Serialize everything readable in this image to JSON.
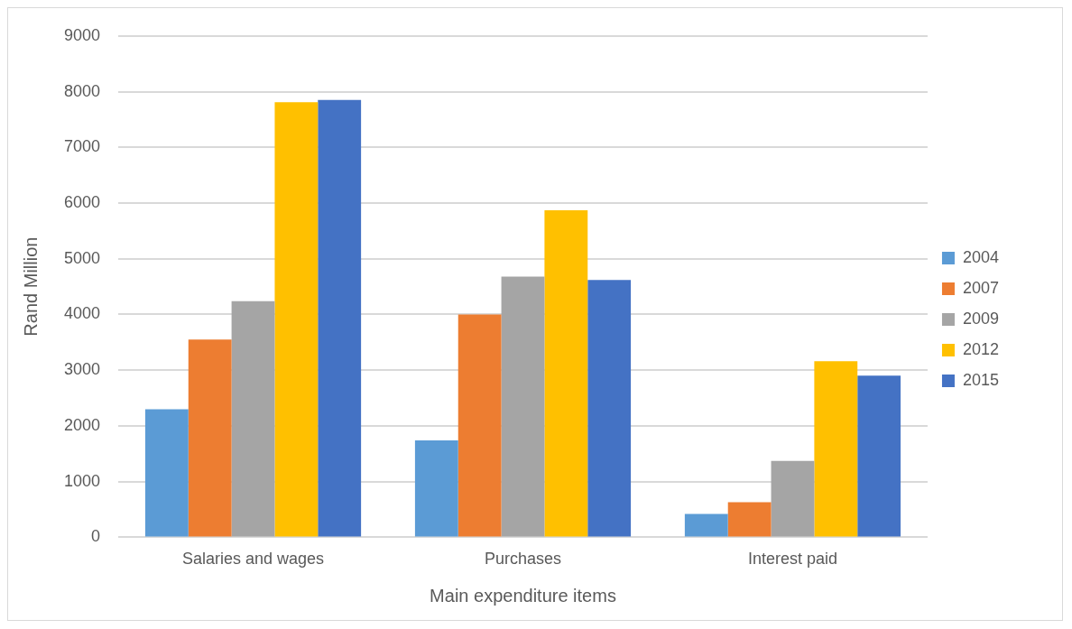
{
  "chart_data": {
    "type": "bar",
    "xlabel": "Main expenditure items",
    "ylabel": "Rand Million",
    "categories": [
      "Salaries and wages",
      "Purchases",
      "Interest paid"
    ],
    "series": [
      {
        "name": "2004",
        "color": "#5b9bd5",
        "values": [
          2300,
          1740,
          420
        ]
      },
      {
        "name": "2007",
        "color": "#ed7d31",
        "values": [
          3550,
          4000,
          630
        ]
      },
      {
        "name": "2009",
        "color": "#a5a5a5",
        "values": [
          4240,
          4680,
          1370
        ]
      },
      {
        "name": "2012",
        "color": "#ffc000",
        "values": [
          7810,
          5870,
          3160
        ]
      },
      {
        "name": "2015",
        "color": "#4472c4",
        "values": [
          7850,
          4620,
          2900
        ]
      }
    ],
    "ylim": [
      0,
      9000
    ],
    "yticks": [
      0,
      1000,
      2000,
      3000,
      4000,
      5000,
      6000,
      7000,
      8000,
      9000
    ],
    "grid": "y",
    "legend": "right"
  }
}
